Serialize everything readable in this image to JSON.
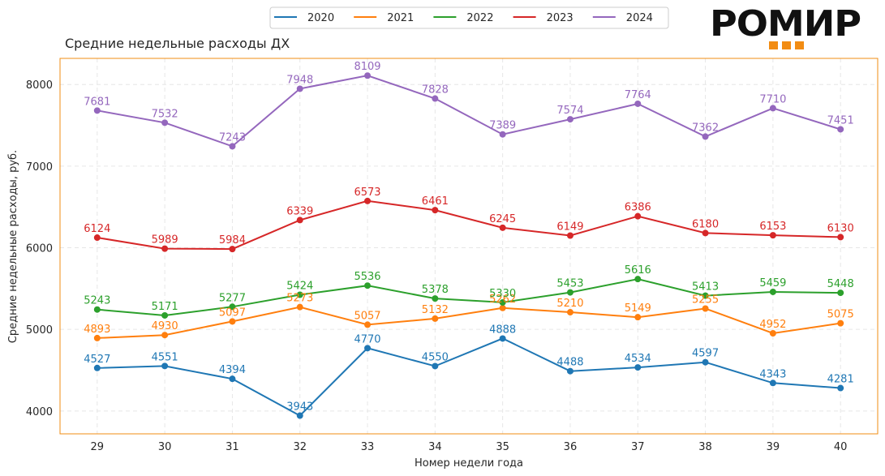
{
  "brand": {
    "logo_text": "РОМИР",
    "logo_square_color": "#f28c13"
  },
  "chart_data": {
    "type": "line",
    "title": "Средние недельные расходы ДХ",
    "xlabel": "Номер недели года",
    "ylabel": "Средние недельные расходы, руб.",
    "x": [
      29,
      30,
      31,
      32,
      33,
      34,
      35,
      36,
      37,
      38,
      39,
      40
    ],
    "xlim": [
      28.45,
      40.55
    ],
    "ylim": [
      3720,
      8320
    ],
    "yticks": [
      4000,
      5000,
      6000,
      7000,
      8000
    ],
    "grid": true,
    "legend_position": "top-center",
    "frame_color": "#f28c13",
    "series": [
      {
        "name": "2020",
        "color": "#1f77b4",
        "values": [
          4527,
          4551,
          4394,
          3943,
          4770,
          4550,
          4888,
          4488,
          4534,
          4597,
          4343,
          4281
        ]
      },
      {
        "name": "2021",
        "color": "#ff7f0e",
        "values": [
          4893,
          4930,
          5097,
          5273,
          5057,
          5132,
          5262,
          5210,
          5149,
          5255,
          4952,
          5075
        ]
      },
      {
        "name": "2022",
        "color": "#2ca02c",
        "values": [
          5243,
          5171,
          5277,
          5424,
          5536,
          5378,
          5330,
          5453,
          5616,
          5413,
          5459,
          5448
        ]
      },
      {
        "name": "2023",
        "color": "#d62728",
        "values": [
          6124,
          5989,
          5984,
          6339,
          6573,
          6461,
          6245,
          6149,
          6386,
          6180,
          6153,
          6130
        ]
      },
      {
        "name": "2024",
        "color": "#9467bd",
        "values": [
          7681,
          7532,
          7243,
          7948,
          8109,
          7828,
          7389,
          7574,
          7764,
          7362,
          7710,
          7451
        ]
      }
    ]
  }
}
